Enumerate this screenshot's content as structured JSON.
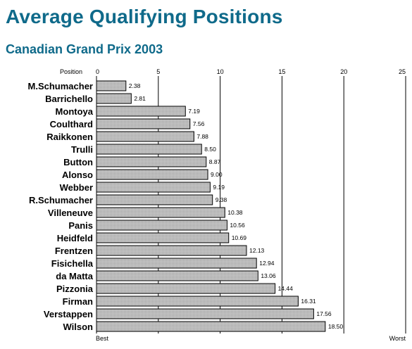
{
  "title": "Average Qualifying Positions",
  "subtitle": "Canadian Grand Prix 2003",
  "chart_data": {
    "type": "bar",
    "orientation": "horizontal",
    "axis_title": "Position",
    "categories": [
      "M.Schumacher",
      "Barrichello",
      "Montoya",
      "Coulthard",
      "Raikkonen",
      "Trulli",
      "Button",
      "Alonso",
      "Webber",
      "R.Schumacher",
      "Villeneuve",
      "Panis",
      "Heidfeld",
      "Frentzen",
      "Fisichella",
      "da Matta",
      "Pizzonia",
      "Firman",
      "Verstappen",
      "Wilson"
    ],
    "values": [
      2.38,
      2.81,
      7.19,
      7.56,
      7.88,
      8.5,
      8.87,
      9.0,
      9.19,
      9.38,
      10.38,
      10.56,
      10.69,
      12.13,
      12.94,
      13.06,
      14.44,
      16.31,
      17.56,
      18.5
    ],
    "value_labels": [
      "2.38",
      "2.81",
      "7.19",
      "7.56",
      "7.88",
      "8.50",
      "8.87",
      "9.00",
      "9.19",
      "9.38",
      "10.38",
      "10.56",
      "10.69",
      "12.13",
      "12.94",
      "13.06",
      "14.44",
      "16.31",
      "17.56",
      "18.50"
    ],
    "xlim": [
      0,
      25
    ],
    "ticks": [
      0,
      5,
      10,
      15,
      20,
      25
    ],
    "tick_labels": [
      "0",
      "5",
      "10",
      "15",
      "20",
      "25"
    ],
    "axis_start_label": "Best",
    "axis_end_label": "Worst",
    "grid": true,
    "bar_color": "#c4c4c4",
    "bar_outline": "#000000",
    "title_color": "#0f6a8a"
  }
}
